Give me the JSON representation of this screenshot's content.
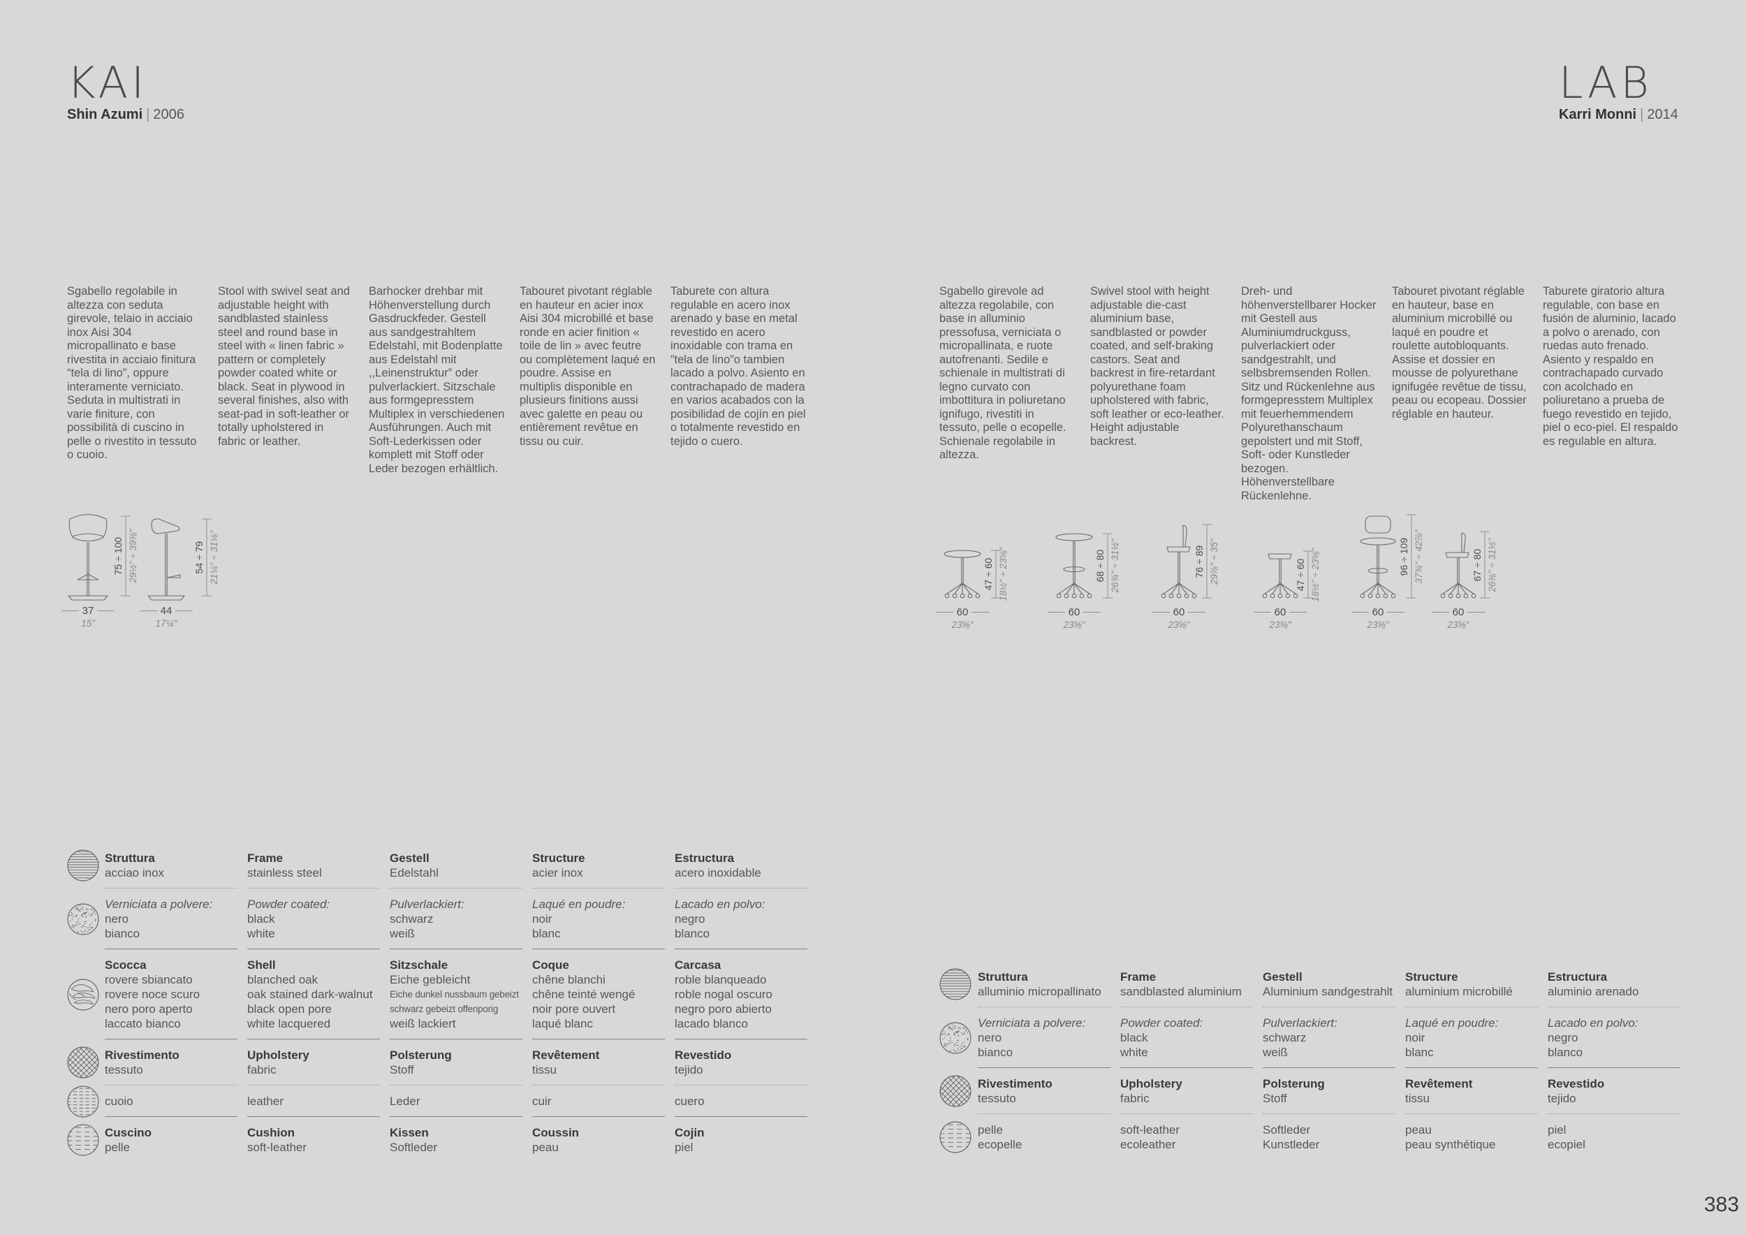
{
  "ui": {
    "separator": "|"
  },
  "page": {
    "number": "383",
    "background": "#d8d8d6"
  },
  "kai": {
    "title": "KAI",
    "designer": "Shin Azumi",
    "year": "2006",
    "descriptions": [
      "Sgabello regolabile in altezza con seduta girevole, telaio in acciaio inox Aisi 304 micropallinato e base rivestita in acciaio finitura “tela di lino”, oppure interamente verniciato. Seduta in multistrati in varie finiture, con possibilità di cuscino in pelle o rivestito in tessuto o cuoio.",
      "Stool with swivel seat and adjustable height with sandblasted stainless steel and round base in steel with « linen fabric » pattern or completely powder coated white or black. Seat in plywood in several finishes, also with seat-pad in soft-leather or totally upholstered in fabric or leather.",
      "Barhocker drehbar mit Höhenverstellung durch Gasdruckfeder. Gestell aus sandgestrahltem Edelstahl, mit Bodenplatte aus Edelstahl mit ,,Leinenstruktur” oder pulverlackiert. Sitzschale aus formgepresstem Multiplex in verschiedenen Ausführungen. Auch mit Soft-Lederkissen oder komplett mit Stoff oder Leder bezogen erhältlich.",
      "Tabouret pivotant réglable en hauteur en acier inox Aisi 304 microbillé et base ronde en acier finition « toile de lin » avec feutre ou complètement laqué en poudre. Assise en multiplis disponible en plusieurs finitions aussi avec galette en peau ou entièrement revêtue en tissu ou cuir.",
      "Taburete con altura regulable  en acero inox arenado y base en metal revestido en acero inoxidable con trama en ”tela de lino”o tambien lacado a polvo. Asiento en contrachapado de madera en varios acabados con la posibilidad de cojín en piel o totalmente revestido en tejido o cuero."
    ],
    "dims": [
      {
        "height_cm": "75 ÷ 100",
        "height_in": "29½\" ÷ 39⅜\"",
        "width_cm": "37",
        "width_in": "15\""
      },
      {
        "height_cm": "54 ÷ 79",
        "height_in": "21¼\" ÷ 31⅛\"",
        "width_cm": "44",
        "width_in": "17¼\""
      }
    ],
    "materials": {
      "rows": [
        {
          "icon": "steel-lines",
          "first": "bold",
          "divider": "dotted",
          "cells": [
            [
              "Struttura",
              "acciao inox"
            ],
            [
              "Frame",
              "stainless steel"
            ],
            [
              "Gestell",
              "Edelstahl"
            ],
            [
              "Structure",
              "acier inox"
            ],
            [
              "Estructura",
              "acero inoxidable"
            ]
          ]
        },
        {
          "icon": "powder-dots",
          "first": "italic",
          "divider": "solid",
          "cells": [
            [
              "Verniciata a polvere:",
              "nero",
              "bianco"
            ],
            [
              "Powder coated:",
              "black",
              "white"
            ],
            [
              "Pulverlackiert:",
              "schwarz",
              "weiß"
            ],
            [
              "Laqué en poudre:",
              "noir",
              "blanc"
            ],
            [
              "Lacado en polvo:",
              "negro",
              "blanco"
            ]
          ]
        },
        {
          "icon": "wood-grain",
          "first": "bold",
          "divider": "solid",
          "cells": [
            [
              "Scocca",
              "rovere sbiancato",
              "rovere noce scuro",
              "nero poro aperto",
              "laccato bianco"
            ],
            [
              "Shell",
              "blanched oak",
              "oak stained dark-walnut",
              "black open pore",
              "white lacquered"
            ],
            [
              "Sitzschale",
              "Eiche gebleicht",
              "Eiche dunkel nussbaum gebeizt",
              "schwarz gebeizt offenporig",
              "weiß lackiert"
            ],
            [
              "Coque",
              "chêne blanchi",
              "chêne teinté wengé",
              "noir pore ouvert",
              "laqué blanc"
            ],
            [
              "Carcasa",
              "roble blanqueado",
              "roble nogal oscuro",
              "negro poro abierto",
              "lacado blanco"
            ]
          ]
        },
        {
          "icon": "fabric-cross",
          "first": "bold",
          "divider": "dotted",
          "cells": [
            [
              "Rivestimento",
              "tessuto"
            ],
            [
              "Upholstery",
              "fabric"
            ],
            [
              "Polsterung",
              "Stoff"
            ],
            [
              "Revêtement",
              "tissu"
            ],
            [
              "Revestido",
              "tejido"
            ]
          ]
        },
        {
          "icon": "leather-dash",
          "first": "none",
          "divider": "solid",
          "cells": [
            [
              "cuoio"
            ],
            [
              "leather"
            ],
            [
              "Leder"
            ],
            [
              "cuir"
            ],
            [
              "cuero"
            ]
          ]
        },
        {
          "icon": "softleather-dash",
          "first": "bold",
          "divider": "none",
          "cells": [
            [
              "Cuscino",
              "pelle"
            ],
            [
              "Cushion",
              "soft-leather"
            ],
            [
              "Kissen",
              "Softleder"
            ],
            [
              "Coussin",
              "peau"
            ],
            [
              "Cojin",
              "piel"
            ]
          ]
        }
      ]
    }
  },
  "lab": {
    "title": "LAB",
    "designer": "Karri Monni",
    "year": "2014",
    "descriptions": [
      "Sgabello girevole ad altezza regolabile, con base in alluminio pressofusa, verniciata o micropallinata, e ruote autofrenanti. Sedile e schienale in multistrati di legno curvato con imbottitura in poliuretano ignifugo, rivestiti in tessuto, pelle o ecopelle. Schienale regolabile in altezza.",
      "Swivel stool with height adjustable die-cast aluminium base, sandblasted or powder coated, and self-braking castors. Seat and backrest in fire-retardant polyurethane foam upholstered with fabric, soft leather or eco-leather. Height adjustable backrest.",
      "Dreh- und höhenverstellbarer Hocker mit Gestell aus Aluminiumdruckguss, pulverlackiert oder sandgestrahlt, und selbsbremsenden Rollen. Sitz und Rückenlehne aus formgepresstem Multiplex mit feuerhemmendem Polyurethanschaum gepolstert und mit Stoff, Soft- oder Kunstleder bezogen. Höhenverstellbare Rückenlehne.",
      "Tabouret pivotant réglable en hauteur, base en aluminium microbillé ou laqué en poudre et roulette autobloquants. Assise et dossier en mousse de polyurethane ignifugée revêtue de tissu, peau ou ecopeau. Dossier réglable en hauteur.",
      "Taburete giratorio altura regulable, con base en fusión de aluminio, lacado a polvo o arenado, con ruedas auto frenado. Asiento y respaldo en contrachapado curvado con acolchado en poliuretano a prueba de fuego revestido en tejido, piel o eco-piel. El respaldo es regulable en altura."
    ],
    "dims": [
      {
        "height_cm": "47 ÷ 60",
        "height_in": "18½\" ÷ 23⅝\"",
        "width_cm": "60",
        "width_in": "23⅝\""
      },
      {
        "height_cm": "68 ÷ 80",
        "height_in": "26¾\" ÷ 31½\"",
        "width_cm": "60",
        "width_in": "23⅝\""
      },
      {
        "height_cm": "76 ÷ 89",
        "height_in": "29⅞\" ÷ 35\"",
        "width_cm": "60",
        "width_in": "23⅝\""
      },
      {
        "height_cm": "47 ÷ 60",
        "height_in": "18½\" ÷ 23⅝\"",
        "width_cm": "60",
        "width_in": "23⅝\""
      },
      {
        "height_cm": "96 ÷ 109",
        "height_in": "37¾\" ÷ 42⅞\"",
        "width_cm": "60",
        "width_in": "23⅝\""
      },
      {
        "height_cm": "67 ÷ 80",
        "height_in": "26⅜\" ÷ 31½\"",
        "width_cm": "60",
        "width_in": "23⅝\""
      }
    ],
    "materials": {
      "rows": [
        {
          "icon": "steel-lines",
          "first": "bold",
          "divider": "dotted",
          "cells": [
            [
              "Struttura",
              "alluminio micropallinato"
            ],
            [
              "Frame",
              "sandblasted aluminium"
            ],
            [
              "Gestell",
              "Aluminium sandgestrahlt"
            ],
            [
              "Structure",
              "aluminium microbillé"
            ],
            [
              "Estructura",
              "aluminio arenado"
            ]
          ]
        },
        {
          "icon": "powder-dots",
          "first": "italic",
          "divider": "solid",
          "cells": [
            [
              "Verniciata a polvere:",
              "nero",
              "bianco"
            ],
            [
              "Powder coated:",
              "black",
              "white"
            ],
            [
              "Pulverlackiert:",
              "schwarz",
              "weiß"
            ],
            [
              "Laqué en poudre:",
              "noir",
              "blanc"
            ],
            [
              "Lacado en polvo:",
              "negro",
              "blanco"
            ]
          ]
        },
        {
          "icon": "fabric-cross",
          "first": "bold",
          "divider": "dotted",
          "cells": [
            [
              "Rivestimento",
              "tessuto"
            ],
            [
              "Upholstery",
              "fabric"
            ],
            [
              "Polsterung",
              "Stoff"
            ],
            [
              "Revêtement",
              "tissu"
            ],
            [
              "Revestido",
              "tejido"
            ]
          ]
        },
        {
          "icon": "softleather-dash",
          "first": "none",
          "divider": "none",
          "cells": [
            [
              "pelle",
              "ecopelle"
            ],
            [
              "soft-leather",
              "ecoleather"
            ],
            [
              "Softleder",
              "Kunstleder"
            ],
            [
              "peau",
              "peau synthétique"
            ],
            [
              "piel",
              "ecopiel"
            ]
          ]
        }
      ]
    }
  }
}
